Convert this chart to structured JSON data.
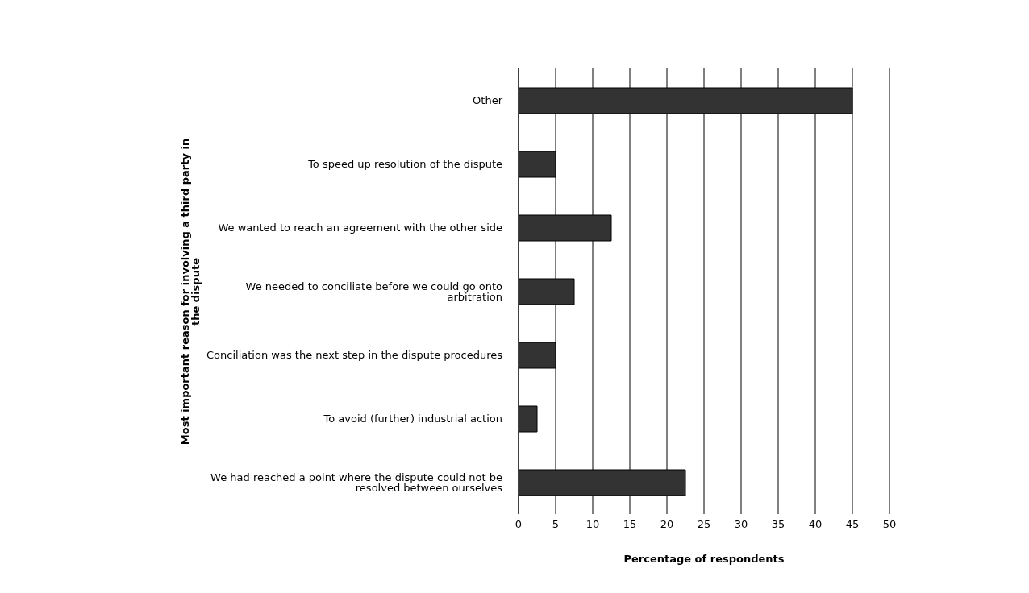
{
  "chart_data": {
    "type": "bar",
    "orientation": "horizontal",
    "xlabel": "Percentage of respondents",
    "ylabel": "Most important reason for involving a third party in the dispute",
    "categories": [
      "Other",
      "To speed up resolution of the dispute",
      "We wanted to reach an agreement with the other side",
      "We needed to conciliate before we could go onto arbitration",
      "Conciliation was the next step in the dispute procedures",
      "To avoid (further) industrial action",
      "We had reached a point where the dispute could not be resolved between ourselves"
    ],
    "values": [
      45,
      5,
      12.5,
      7.5,
      5,
      2.5,
      22.5
    ],
    "color": "#333333",
    "xlim": [
      0,
      50
    ],
    "xticks": [
      0,
      5,
      10,
      15,
      20,
      25,
      30,
      35,
      40,
      45,
      50
    ],
    "grid": "x",
    "legend": false
  }
}
